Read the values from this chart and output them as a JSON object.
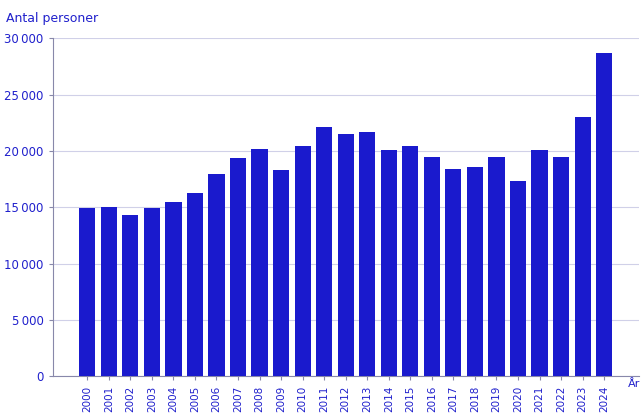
{
  "years": [
    2000,
    2001,
    2002,
    2003,
    2004,
    2005,
    2006,
    2007,
    2008,
    2009,
    2010,
    2011,
    2012,
    2013,
    2014,
    2015,
    2016,
    2017,
    2018,
    2019,
    2020,
    2021,
    2022,
    2023,
    2024
  ],
  "values": [
    14950,
    15050,
    14350,
    14900,
    15450,
    16300,
    17950,
    19350,
    20200,
    18350,
    20450,
    22150,
    21550,
    21700,
    20050,
    20450,
    19450,
    18400,
    18600,
    19500,
    17350,
    20050,
    19500,
    23000,
    28700
  ],
  "bar_color": "#1a1acd",
  "top_label": "Antal personer",
  "xlabel_right": "År",
  "ylim": [
    0,
    30000
  ],
  "yticks": [
    0,
    5000,
    10000,
    15000,
    20000,
    25000,
    30000
  ],
  "background_color": "#ffffff",
  "grid_color": "#d0d0e8",
  "text_color": "#2020cc",
  "tick_color": "#8888aa"
}
